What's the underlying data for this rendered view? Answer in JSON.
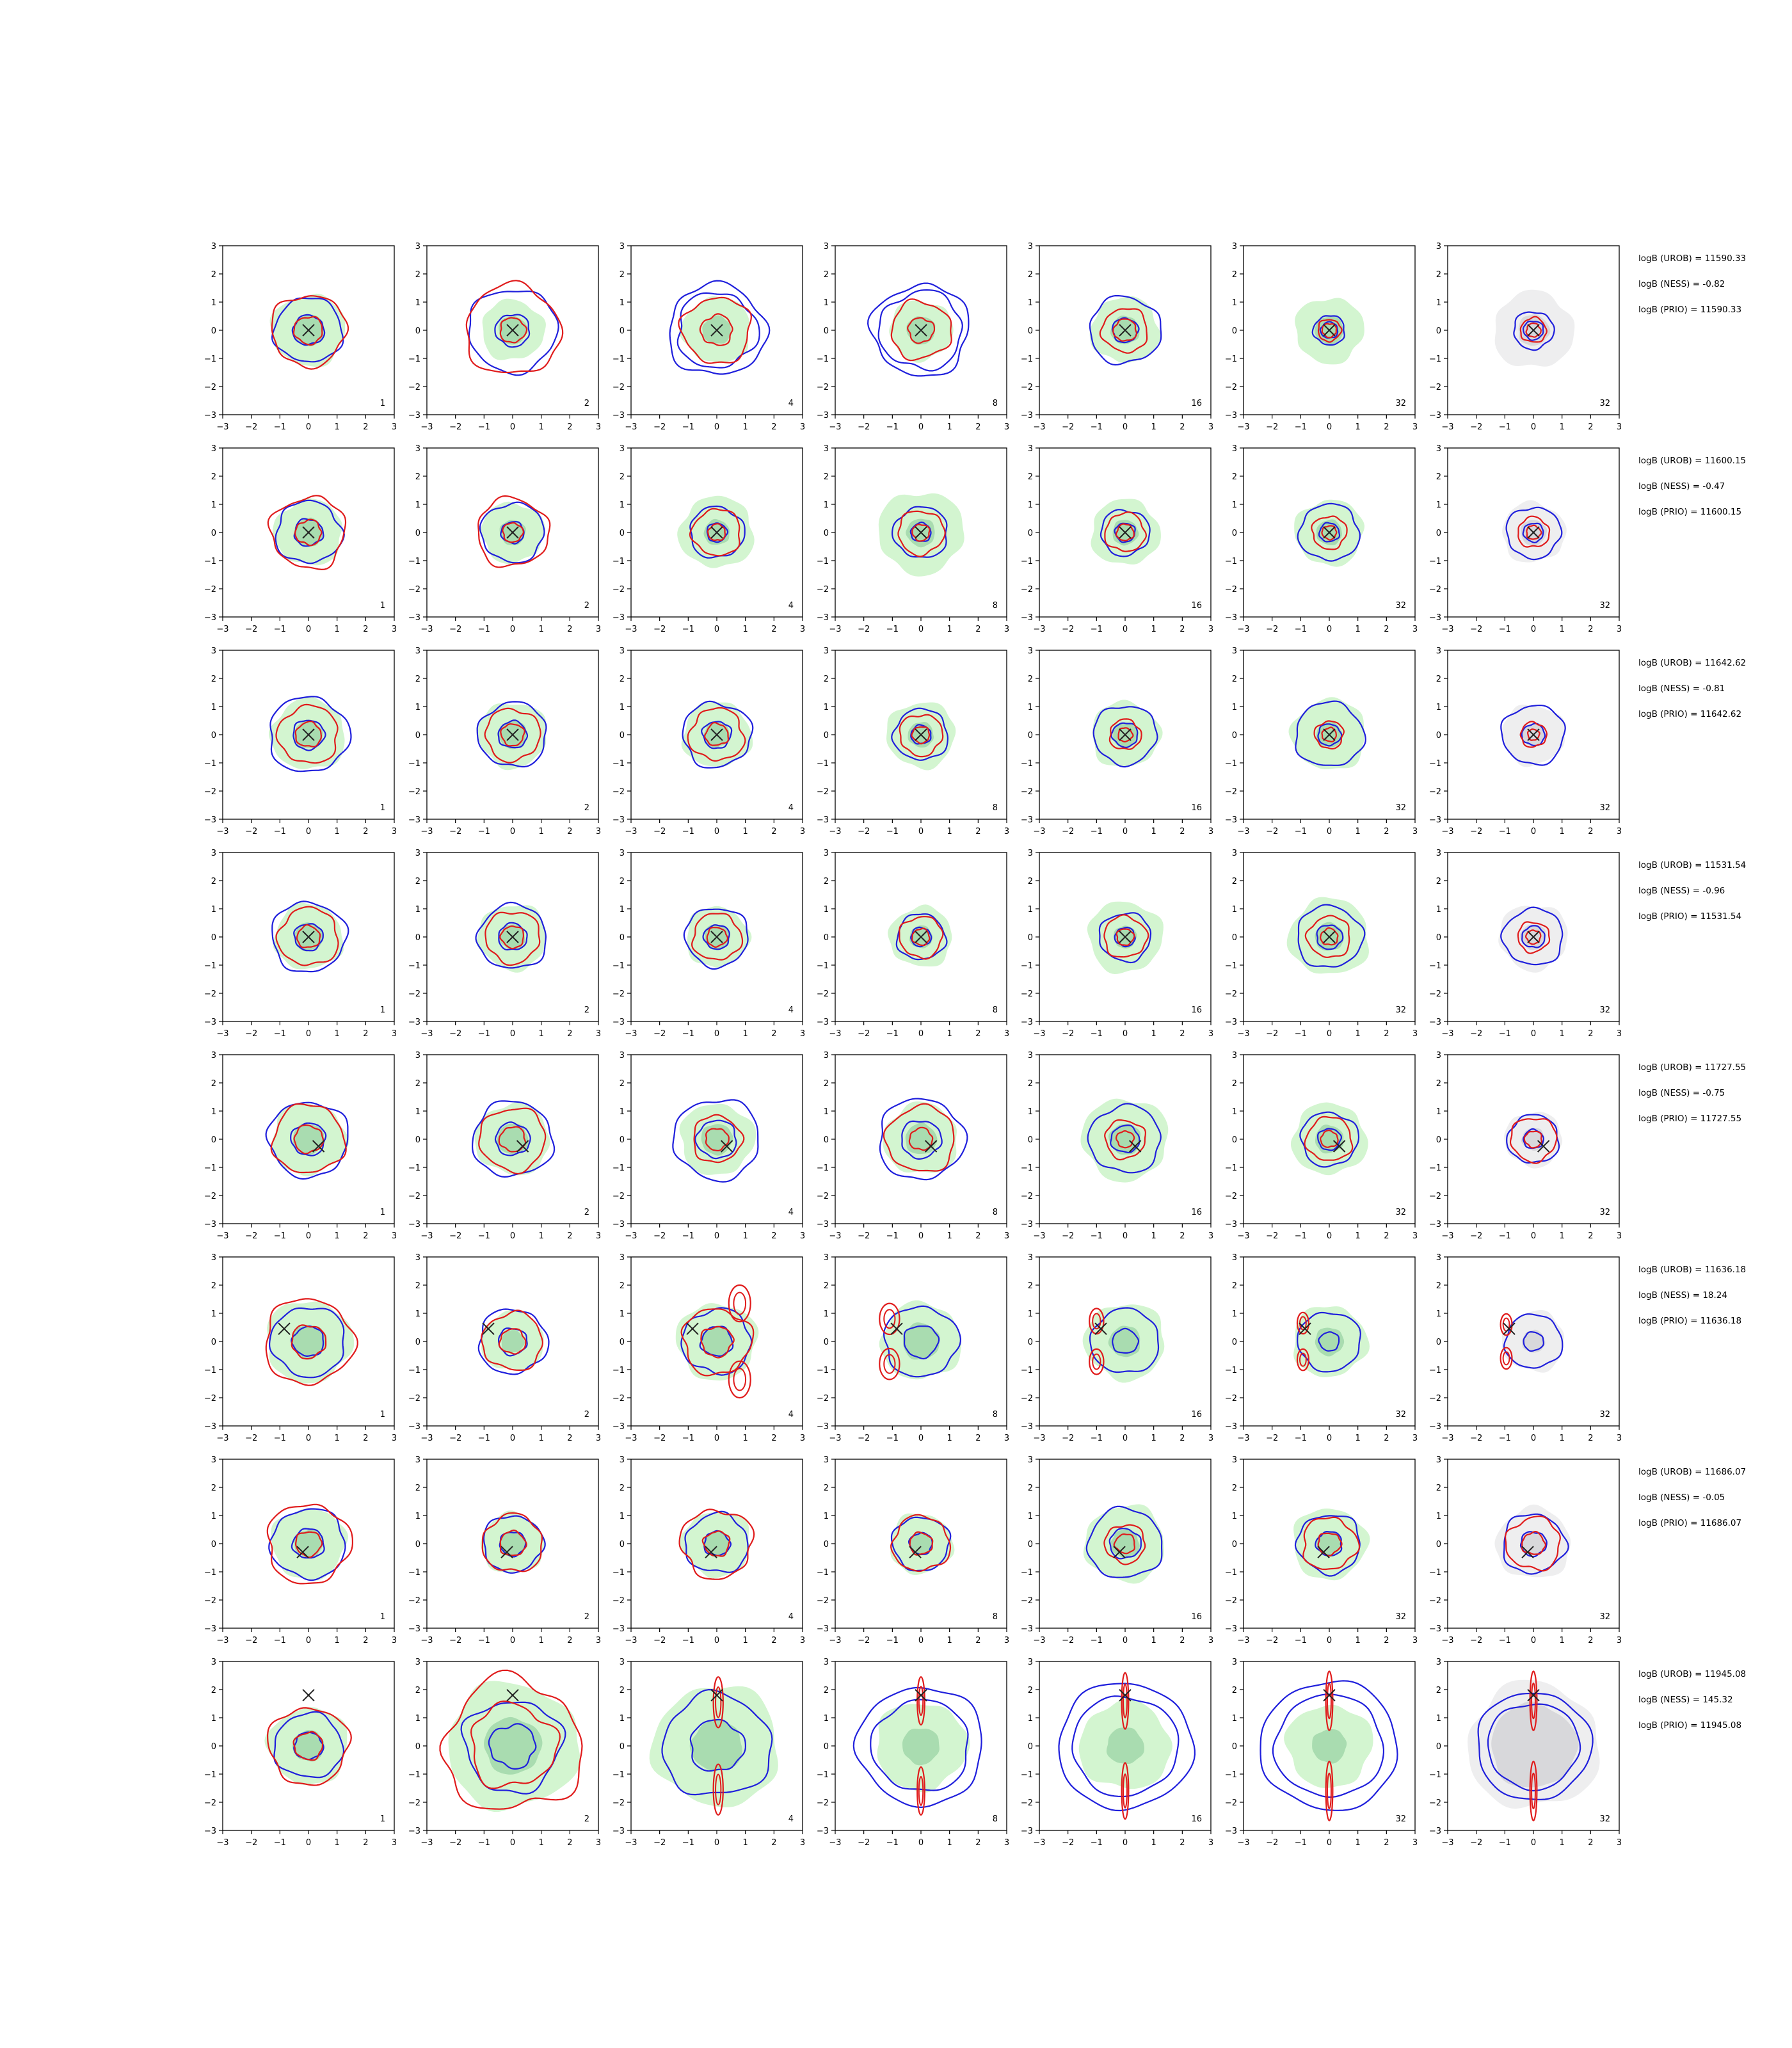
{
  "chart_data": {
    "type": "contour-grid",
    "axis": {
      "xlim": [
        -3,
        3
      ],
      "ylim": [
        -3,
        3
      ],
      "xticks": [
        -3,
        -2,
        -1,
        0,
        1,
        2,
        3
      ],
      "yticks": [
        -3,
        -2,
        -1,
        0,
        1,
        2,
        3
      ],
      "grid": false
    },
    "colors": {
      "background": "#ffffff",
      "green_fill_outer": "#d3f5d0",
      "green_fill_inner": "#a9dcb0",
      "gray_fill_outer": "#eeeeef",
      "gray_fill_inner": "#d8d8db",
      "blue_contour": "#1f1fdc",
      "red_contour": "#e01b1b",
      "marker": "#222222"
    },
    "column_labels": [
      "1",
      "2",
      "4",
      "8",
      "16",
      "32",
      "32"
    ],
    "rows": [
      {
        "marker": [
          0,
          0
        ],
        "stats": [
          "logB (UROB) = 11590.33",
          "logB (NESS) = -0.82",
          "logB (PRIO) = 11590.33"
        ],
        "panels": [
          {
            "fill": "green",
            "fr": 1.3,
            "fi": 0.55,
            "b": [
              1.2,
              0.55
            ],
            "r": [
              1.3,
              0.5
            ],
            "j": 0.1
          },
          {
            "fill": "green",
            "fr": 1.1,
            "fi": 0.5,
            "b": [
              1.55,
              0.6
            ],
            "r": [
              1.65,
              0.45
            ],
            "j": 0.1
          },
          {
            "fill": "green",
            "fr": 1.2,
            "fi": 0.5,
            "b": [
              1.7,
              1.4
            ],
            "r": [
              1.2,
              0.55
            ],
            "j": 0.12
          },
          {
            "fill": "green",
            "fr": 1.1,
            "fi": 0.5,
            "b": [
              1.7,
              1.45
            ],
            "r": [
              1.05,
              0.45
            ],
            "j": 0.12
          },
          {
            "fill": "green",
            "fr": 1.2,
            "fi": 0.5,
            "b": [
              1.25,
              0.45
            ],
            "r": [
              0.8,
              0.4
            ],
            "j": 0.1
          },
          {
            "fill": "green",
            "fr": 1.2,
            "fi": 0.5,
            "b": [
              0.55,
              0.3
            ],
            "r": [
              0.4,
              0.25
            ],
            "j": 0.1
          },
          {
            "fill": "gray",
            "fr": 1.4,
            "fi": 0.55,
            "b": [
              0.7,
              0.35
            ],
            "r": [
              0.45,
              0.25
            ],
            "j": 0.1
          }
        ]
      },
      {
        "marker": [
          0,
          0
        ],
        "stats": [
          "logB (UROB) = 11600.15",
          "logB (NESS) = -0.47",
          "logB (PRIO) = 11600.15"
        ],
        "panels": [
          {
            "fill": "green",
            "fr": 1.2,
            "fi": 0.5,
            "b": [
              1.15,
              0.5
            ],
            "r": [
              1.3,
              0.45
            ],
            "j": 0.12
          },
          {
            "fill": "green",
            "fr": 1.1,
            "fi": 0.45,
            "b": [
              1.1,
              0.4
            ],
            "r": [
              1.25,
              0.35
            ],
            "j": 0.1
          },
          {
            "fill": "green",
            "fr": 1.3,
            "fi": 0.45,
            "b": [
              0.95,
              0.35
            ],
            "r": [
              0.85,
              0.3
            ],
            "j": 0.1
          },
          {
            "fill": "green",
            "fr": 1.5,
            "fi": 0.5,
            "b": [
              0.95,
              0.35
            ],
            "r": [
              0.8,
              0.3
            ],
            "j": 0.1
          },
          {
            "fill": "green",
            "fr": 1.2,
            "fi": 0.45,
            "b": [
              0.85,
              0.35
            ],
            "r": [
              0.7,
              0.3
            ],
            "j": 0.1
          },
          {
            "fill": "green",
            "fr": 1.2,
            "fi": 0.45,
            "b": [
              1.05,
              0.35
            ],
            "r": [
              0.6,
              0.25
            ],
            "j": 0.1
          },
          {
            "fill": "gray",
            "fr": 1.1,
            "fi": 0.45,
            "b": [
              0.95,
              0.35
            ],
            "r": [
              0.55,
              0.25
            ],
            "j": 0.1
          }
        ]
      },
      {
        "marker": [
          0,
          0
        ],
        "stats": [
          "logB (UROB) = 11642.62",
          "logB (NESS) = -0.81",
          "logB (PRIO) = 11642.62"
        ],
        "panels": [
          {
            "fill": "green",
            "fr": 1.3,
            "fi": 0.5,
            "b": [
              1.4,
              0.55
            ],
            "r": [
              1.05,
              0.45
            ],
            "j": 0.1
          },
          {
            "fill": "green",
            "fr": 1.2,
            "fi": 0.5,
            "b": [
              1.2,
              0.5
            ],
            "r": [
              0.95,
              0.4
            ],
            "j": 0.1
          },
          {
            "fill": "green",
            "fr": 1.2,
            "fi": 0.45,
            "b": [
              1.2,
              0.5
            ],
            "r": [
              0.95,
              0.4
            ],
            "j": 0.12
          },
          {
            "fill": "green",
            "fr": 1.2,
            "fi": 0.45,
            "b": [
              0.95,
              0.35
            ],
            "r": [
              0.75,
              0.3
            ],
            "j": 0.1
          },
          {
            "fill": "green",
            "fr": 1.2,
            "fi": 0.45,
            "b": [
              1.1,
              0.45
            ],
            "r": [
              0.55,
              0.25
            ],
            "j": 0.1
          },
          {
            "fill": "green",
            "fr": 1.3,
            "fi": 0.45,
            "b": [
              1.2,
              0.4
            ],
            "r": [
              0.5,
              0.25
            ],
            "j": 0.1
          },
          {
            "fill": "gray",
            "fr": 1.1,
            "fi": 0.4,
            "b": [
              1.1,
              0.4
            ],
            "r": [
              0.45,
              0.2
            ],
            "j": 0.1
          }
        ]
      },
      {
        "marker": [
          0,
          0
        ],
        "stats": [
          "logB (UROB) = 11531.54",
          "logB (NESS) = -0.96",
          "logB (PRIO) = 11531.54"
        ],
        "panels": [
          {
            "fill": "green",
            "fr": 1.2,
            "fi": 0.5,
            "b": [
              1.3,
              0.5
            ],
            "r": [
              1.05,
              0.4
            ],
            "j": 0.1
          },
          {
            "fill": "green",
            "fr": 1.2,
            "fi": 0.45,
            "b": [
              1.2,
              0.5
            ],
            "r": [
              0.95,
              0.4
            ],
            "j": 0.1
          },
          {
            "fill": "green",
            "fr": 1.1,
            "fi": 0.45,
            "b": [
              1.1,
              0.45
            ],
            "r": [
              0.85,
              0.35
            ],
            "j": 0.1
          },
          {
            "fill": "green",
            "fr": 1.1,
            "fi": 0.4,
            "b": [
              0.85,
              0.35
            ],
            "r": [
              0.75,
              0.3
            ],
            "j": 0.1
          },
          {
            "fill": "green",
            "fr": 1.3,
            "fi": 0.4,
            "b": [
              0.9,
              0.35
            ],
            "r": [
              0.75,
              0.3
            ],
            "j": 0.1
          },
          {
            "fill": "green",
            "fr": 1.4,
            "fi": 0.5,
            "b": [
              1.15,
              0.45
            ],
            "r": [
              0.75,
              0.3
            ],
            "j": 0.1
          },
          {
            "fill": "gray",
            "fr": 1.2,
            "fi": 0.45,
            "b": [
              1.05,
              0.4
            ],
            "r": [
              0.55,
              0.25
            ],
            "j": 0.1
          }
        ]
      },
      {
        "marker": [
          0.35,
          -0.25
        ],
        "stats": [
          "logB (UROB) = 11727.55",
          "logB (NESS) = -0.75",
          "logB (PRIO) = 11727.55"
        ],
        "panels": [
          {
            "fill": "green",
            "fr": 1.3,
            "fi": 0.55,
            "b": [
              1.4,
              0.6
            ],
            "r": [
              1.25,
              0.5
            ],
            "j": 0.1
          },
          {
            "fill": "green",
            "fr": 1.3,
            "fi": 0.55,
            "b": [
              1.4,
              0.6
            ],
            "r": [
              1.15,
              0.45
            ],
            "j": 0.1
          },
          {
            "fill": "green",
            "fr": 1.3,
            "fi": 0.55,
            "b": [
              1.5,
              0.7
            ],
            "r": [
              0.85,
              0.4
            ],
            "j": 0.1
          },
          {
            "fill": "green",
            "fr": 1.3,
            "fi": 0.55,
            "b": [
              1.5,
              0.7
            ],
            "r": [
              1.2,
              0.4
            ],
            "j": 0.1
          },
          {
            "fill": "green",
            "fr": 1.5,
            "fi": 0.55,
            "b": [
              1.25,
              0.5
            ],
            "r": [
              0.7,
              0.3
            ],
            "j": 0.1
          },
          {
            "fill": "green",
            "fr": 1.3,
            "fi": 0.5,
            "b": [
              1.0,
              0.4
            ],
            "r": [
              0.8,
              0.3
            ],
            "j": 0.1
          },
          {
            "fill": "gray",
            "fr": 1.0,
            "fi": 0.4,
            "b": [
              0.9,
              0.35
            ],
            "r": [
              0.8,
              0.3
            ],
            "j": 0.1
          }
        ]
      },
      {
        "marker": [
          -0.85,
          0.45
        ],
        "stats": [
          "logB (UROB) = 11636.18",
          "logB (NESS) = 18.24",
          "logB (PRIO) = 11636.18"
        ],
        "panels": [
          {
            "fill": "green",
            "fr": 1.5,
            "fi": 0.6,
            "b": [
              1.3,
              0.55
            ],
            "r": [
              1.55,
              0.6
            ],
            "j": 0.1
          },
          {
            "fill": "green",
            "fr": 1.1,
            "fi": 0.4,
            "b": [
              1.2,
              0.5
            ],
            "r": [
              1.05,
              0.45
            ],
            "j": 0.1
          },
          {
            "fill": "green",
            "fr": 1.4,
            "fi": 0.55,
            "b": [
              1.2,
              0.55
            ],
            "r": [
              1.2,
              0.55
            ],
            "j": 0.12,
            "lobes": [
              [
                0.8,
                1.35,
                0.38,
                0.65
              ],
              [
                0.8,
                -1.35,
                0.38,
                0.65
              ]
            ]
          },
          {
            "fill": "green",
            "fr": 1.4,
            "fi": 0.65,
            "b": [
              1.3,
              0.6
            ],
            "r": [],
            "j": 0.1,
            "lobes": [
              [
                -1.1,
                0.8,
                0.35,
                0.55
              ],
              [
                -1.1,
                -0.8,
                0.35,
                0.55
              ]
            ]
          },
          {
            "fill": "green",
            "fr": 1.4,
            "fi": 0.55,
            "b": [
              1.2,
              0.45
            ],
            "r": [],
            "j": 0.08,
            "lobes": [
              [
                -1.0,
                0.72,
                0.25,
                0.45
              ],
              [
                -1.0,
                -0.72,
                0.25,
                0.45
              ]
            ]
          },
          {
            "fill": "green",
            "fr": 1.3,
            "fi": 0.5,
            "b": [
              1.1,
              0.35
            ],
            "r": [],
            "j": 0.08,
            "lobes": [
              [
                -0.92,
                0.65,
                0.2,
                0.38
              ],
              [
                -0.92,
                -0.65,
                0.2,
                0.38
              ]
            ]
          },
          {
            "fill": "gray",
            "fr": 1.1,
            "fi": 0.4,
            "b": [
              1.0,
              0.35
            ],
            "r": [],
            "j": 0.08,
            "lobes": [
              [
                -0.95,
                0.6,
                0.2,
                0.38
              ],
              [
                -0.95,
                -0.6,
                0.2,
                0.38
              ]
            ]
          }
        ]
      },
      {
        "marker": [
          -0.2,
          -0.3
        ],
        "stats": [
          "logB (UROB) = 11686.07",
          "logB (NESS) = -0.05",
          "logB (PRIO) = 11686.07"
        ],
        "panels": [
          {
            "fill": "green",
            "fr": 1.3,
            "fi": 0.5,
            "b": [
              1.3,
              0.55
            ],
            "r": [
              1.45,
              0.45
            ],
            "j": 0.1
          },
          {
            "fill": "green",
            "fr": 1.1,
            "fi": 0.45,
            "b": [
              1.05,
              0.45
            ],
            "r": [
              1.05,
              0.45
            ],
            "j": 0.1
          },
          {
            "fill": "green",
            "fr": 1.2,
            "fi": 0.45,
            "b": [
              1.1,
              0.45
            ],
            "r": [
              1.25,
              0.45
            ],
            "j": 0.12
          },
          {
            "fill": "green",
            "fr": 1.1,
            "fi": 0.4,
            "b": [
              1.0,
              0.4
            ],
            "r": [
              1.0,
              0.4
            ],
            "j": 0.1
          },
          {
            "fill": "green",
            "fr": 1.4,
            "fi": 0.5,
            "b": [
              1.3,
              0.55
            ],
            "r": [
              0.7,
              0.35
            ],
            "j": 0.1
          },
          {
            "fill": "green",
            "fr": 1.3,
            "fi": 0.45,
            "b": [
              1.1,
              0.45
            ],
            "r": [
              0.95,
              0.4
            ],
            "j": 0.12
          },
          {
            "fill": "gray",
            "fr": 1.3,
            "fi": 0.45,
            "b": [
              1.1,
              0.45
            ],
            "r": [
              0.95,
              0.4
            ],
            "j": 0.12
          }
        ]
      },
      {
        "marker": [
          0,
          1.8
        ],
        "stats": [
          "logB (UROB) = 11945.08",
          "logB (NESS) = 145.32",
          "logB (PRIO) = 11945.08"
        ],
        "panels": [
          {
            "fill": "green",
            "fr": 1.4,
            "fi": 0.55,
            "b": [
              1.2,
              0.5
            ],
            "r": [
              1.4,
              0.5
            ],
            "j": 0.1
          },
          {
            "fill": "green",
            "fr": 2.3,
            "fi": 1.0,
            "b": [
              1.7,
              0.8
            ],
            "r": [
              2.4,
              1.5
            ],
            "j": 0.15
          },
          {
            "fill": "green",
            "fr": 2.2,
            "fi": 0.9,
            "b": [
              1.9,
              0.95
            ],
            "r": [],
            "j": 0.12,
            "lobes": [
              [
                0.05,
                1.55,
                0.17,
                0.9
              ],
              [
                0.05,
                -1.55,
                0.17,
                0.9
              ]
            ]
          },
          {
            "fill": "green",
            "fr": 1.6,
            "fi": 0.65,
            "b": [
              2.2,
              1.7
            ],
            "r": [],
            "j": 0.08,
            "lobes": [
              [
                0.0,
                1.6,
                0.13,
                0.85
              ],
              [
                0.0,
                -1.6,
                0.13,
                0.85
              ]
            ]
          },
          {
            "fill": "green",
            "fr": 1.6,
            "fi": 0.65,
            "b": [
              2.35,
              1.85
            ],
            "r": [],
            "j": 0.06,
            "lobes": [
              [
                0.0,
                1.6,
                0.12,
                1.0
              ],
              [
                0.0,
                -1.6,
                0.12,
                1.0
              ]
            ]
          },
          {
            "fill": "green",
            "fr": 1.5,
            "fi": 0.6,
            "b": [
              2.4,
              1.9
            ],
            "r": [],
            "j": 0.06,
            "lobes": [
              [
                0.0,
                1.6,
                0.12,
                1.05
              ],
              [
                0.0,
                -1.6,
                0.12,
                1.05
              ]
            ]
          },
          {
            "fill": "gray",
            "fr": 2.3,
            "fi": 1.5,
            "b": [
              2.0,
              1.6
            ],
            "r": [],
            "j": 0.06,
            "lobes": [
              [
                0.0,
                1.6,
                0.12,
                1.05
              ],
              [
                0.0,
                -1.6,
                0.12,
                1.05
              ]
            ]
          }
        ]
      }
    ]
  }
}
